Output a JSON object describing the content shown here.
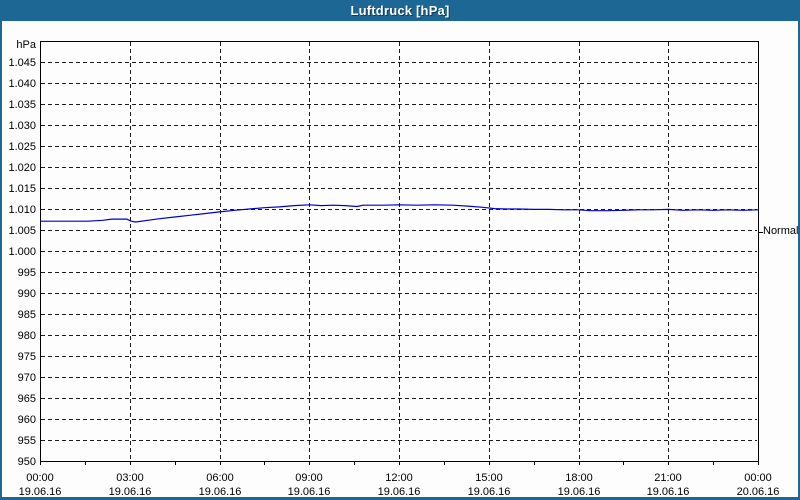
{
  "window": {
    "title": "Luftdruck [hPa]"
  },
  "colors": {
    "titlebar": "#1d6795",
    "frame": "#1d6795",
    "background": "#fdfdfd",
    "plot_border": "#000000",
    "grid": "#1a1a1a",
    "line": "#0000cc",
    "text": "#000000"
  },
  "chart_data": {
    "type": "line",
    "title": "Luftdruck [hPa]",
    "ylabel": "hPa",
    "xlabel": "",
    "ylim": [
      950,
      1050
    ],
    "ytick_step": 5,
    "grid": "dashed",
    "legend_position": "none",
    "yticks": [
      {
        "value": 1045,
        "label": "1.045"
      },
      {
        "value": 1040,
        "label": "1.040"
      },
      {
        "value": 1035,
        "label": "1.035"
      },
      {
        "value": 1030,
        "label": "1.030"
      },
      {
        "value": 1025,
        "label": "1.025"
      },
      {
        "value": 1020,
        "label": "1.020"
      },
      {
        "value": 1015,
        "label": "1.015"
      },
      {
        "value": 1010,
        "label": "1.010"
      },
      {
        "value": 1005,
        "label": "1.005"
      },
      {
        "value": 1000,
        "label": "1.000"
      },
      {
        "value": 995,
        "label": "995"
      },
      {
        "value": 990,
        "label": "990"
      },
      {
        "value": 985,
        "label": "985"
      },
      {
        "value": 980,
        "label": "980"
      },
      {
        "value": 975,
        "label": "975"
      },
      {
        "value": 970,
        "label": "970"
      },
      {
        "value": 965,
        "label": "965"
      },
      {
        "value": 960,
        "label": "960"
      },
      {
        "value": 955,
        "label": "955"
      },
      {
        "value": 950,
        "label": "950"
      }
    ],
    "xlim_hours": [
      0,
      24
    ],
    "minor_xtick_hours": 1.5,
    "xticks": [
      {
        "hour": 0,
        "time": "00:00",
        "date": "19.06.16"
      },
      {
        "hour": 3,
        "time": "03:00",
        "date": "19.06.16"
      },
      {
        "hour": 6,
        "time": "06:00",
        "date": "19.06.16"
      },
      {
        "hour": 9,
        "time": "09:00",
        "date": "19.06.16"
      },
      {
        "hour": 12,
        "time": "12:00",
        "date": "19.06.16"
      },
      {
        "hour": 15,
        "time": "15:00",
        "date": "19.06.16"
      },
      {
        "hour": 18,
        "time": "18:00",
        "date": "19.06.16"
      },
      {
        "hour": 21,
        "time": "21:00",
        "date": "19.06.16"
      },
      {
        "hour": 24,
        "time": "00:00",
        "date": "20.06.16"
      }
    ],
    "annotation": {
      "label": "Normal",
      "value": 1004.5
    },
    "series": [
      {
        "name": "Luftdruck",
        "color": "#0000cc",
        "points": [
          [
            0,
            1007.1
          ],
          [
            0.8,
            1007.1
          ],
          [
            1.6,
            1007.1
          ],
          [
            2.1,
            1007.3
          ],
          [
            2.4,
            1007.6
          ],
          [
            2.9,
            1007.6
          ],
          [
            3.05,
            1007.1
          ],
          [
            3.2,
            1006.9
          ],
          [
            3.6,
            1007.3
          ],
          [
            4,
            1007.7
          ],
          [
            4.5,
            1008.1
          ],
          [
            5,
            1008.5
          ],
          [
            5.5,
            1008.9
          ],
          [
            6,
            1009.3
          ],
          [
            6.5,
            1009.7
          ],
          [
            7,
            1010.0
          ],
          [
            7.5,
            1010.3
          ],
          [
            8,
            1010.5
          ],
          [
            8.5,
            1010.8
          ],
          [
            9,
            1011.0
          ],
          [
            9.4,
            1010.8
          ],
          [
            9.8,
            1010.9
          ],
          [
            10.2,
            1010.8
          ],
          [
            10.6,
            1010.6
          ],
          [
            10.8,
            1010.9
          ],
          [
            11.5,
            1010.9
          ],
          [
            12,
            1011.0
          ],
          [
            12.6,
            1010.9
          ],
          [
            13.2,
            1011.0
          ],
          [
            13.8,
            1010.9
          ],
          [
            14.3,
            1010.7
          ],
          [
            14.8,
            1010.4
          ],
          [
            15.2,
            1010.1
          ],
          [
            15.6,
            1010.0
          ],
          [
            16,
            1010.0
          ],
          [
            16.5,
            1009.9
          ],
          [
            17,
            1009.9
          ],
          [
            17.5,
            1009.8
          ],
          [
            18,
            1009.8
          ],
          [
            18.4,
            1009.6
          ],
          [
            19,
            1009.6
          ],
          [
            19.5,
            1009.7
          ],
          [
            20,
            1009.8
          ],
          [
            20.5,
            1009.8
          ],
          [
            21,
            1009.9
          ],
          [
            21.5,
            1009.7
          ],
          [
            22,
            1009.8
          ],
          [
            22.5,
            1009.7
          ],
          [
            23,
            1009.8
          ],
          [
            23.5,
            1009.7
          ],
          [
            24,
            1009.8
          ]
        ]
      }
    ]
  }
}
